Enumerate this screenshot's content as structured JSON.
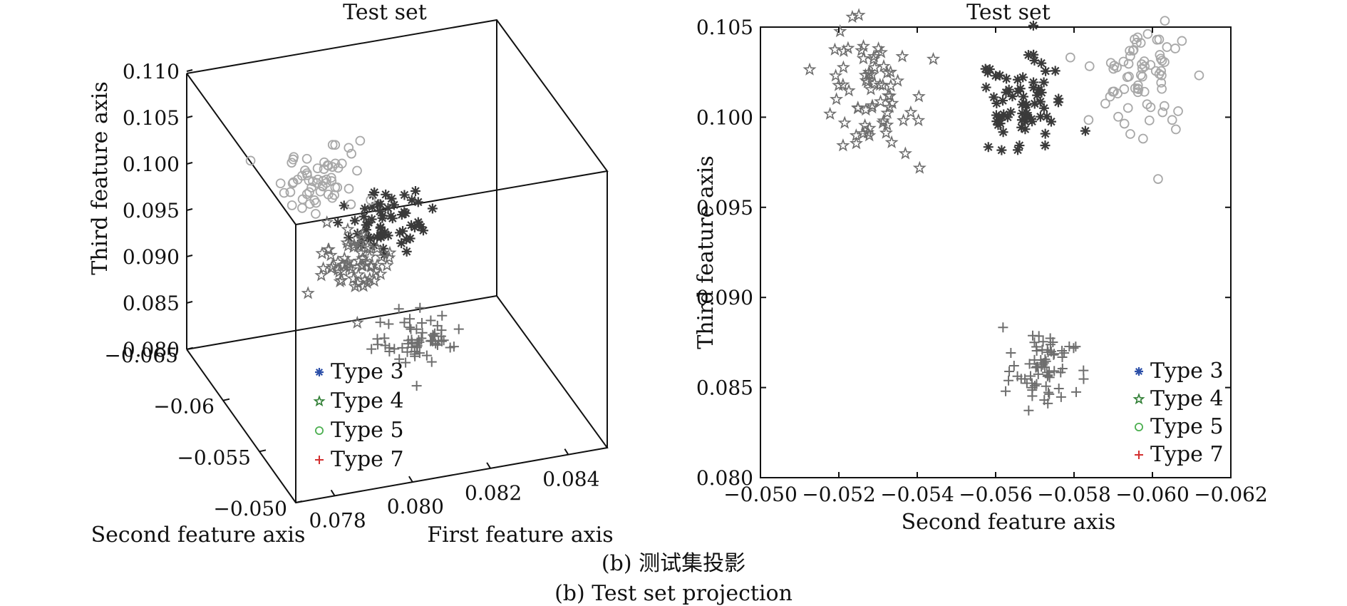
{
  "caption": {
    "line1": "(b) 测试集投影",
    "line2": "(b) Test set projection"
  },
  "legend": [
    {
      "label": "Type 3",
      "marker": "asterisk",
      "color": "#2c4fa8"
    },
    {
      "label": "Type 4",
      "marker": "star",
      "color": "#2e7d32"
    },
    {
      "label": "Type 5",
      "marker": "circle",
      "color": "#4caf50"
    },
    {
      "label": "Type 7",
      "marker": "plus",
      "color": "#d32f2f"
    }
  ],
  "colors": {
    "type3_points": "#3a3a3a",
    "type4_points": "#6e6e6e",
    "type5_points": "#a8a8a8",
    "type7_points": "#6e6e6e",
    "axes": "#111111"
  },
  "chart_data": [
    {
      "type": "scatter",
      "projection": "3d",
      "title": "Test set",
      "xlabel": "First feature axis",
      "ylabel": "Second feature axis",
      "zlabel": "Third feature axis",
      "xlim": [
        0.077,
        0.085
      ],
      "ylim": [
        -0.065,
        -0.05
      ],
      "zlim": [
        0.08,
        0.11
      ],
      "x_ticks": [
        "0.078",
        "0.080",
        "0.082",
        "0.084"
      ],
      "y_ticks": [
        "−0.065",
        "−0.06",
        "−0.055",
        "−0.050"
      ],
      "z_ticks": [
        "0.080",
        "0.085",
        "0.090",
        "0.095",
        "0.100",
        "0.105",
        "0.110"
      ],
      "grid": false,
      "legend_position": "lower-left",
      "series": [
        {
          "name": "Type 3",
          "marker": "asterisk",
          "center": [
            0.0805,
            -0.0565,
            0.1005
          ],
          "spread": [
            0.0006,
            0.0006,
            0.0015
          ],
          "count": 60
        },
        {
          "name": "Type 4",
          "marker": "star",
          "center": [
            0.079,
            -0.0527,
            0.1015
          ],
          "spread": [
            0.0005,
            0.0006,
            0.0018
          ],
          "count": 60
        },
        {
          "name": "Type 5",
          "marker": "circle",
          "center": [
            0.0795,
            -0.0596,
            0.1025
          ],
          "spread": [
            0.0005,
            0.0006,
            0.0015
          ],
          "count": 60
        },
        {
          "name": "Type 7",
          "marker": "plus",
          "center": [
            0.0815,
            -0.0573,
            0.086
          ],
          "spread": [
            0.0005,
            0.0006,
            0.0012
          ],
          "count": 60
        }
      ]
    },
    {
      "type": "scatter",
      "title": "Test set",
      "xlabel": "Second feature axis",
      "ylabel": "Third feature axis",
      "xlim": [
        -0.05,
        -0.062
      ],
      "ylim": [
        0.08,
        0.105
      ],
      "x_ticks": [
        "−0.050",
        "−0.052",
        "−0.054",
        "−0.056",
        "−0.058",
        "−0.060",
        "−0.062"
      ],
      "y_ticks": [
        "0.080",
        "0.085",
        "0.090",
        "0.095",
        "0.100",
        "0.105"
      ],
      "grid": false,
      "legend_position": "lower-right",
      "series": [
        {
          "name": "Type 3",
          "marker": "asterisk",
          "center": [
            -0.0567,
            0.1005
          ],
          "spread": [
            0.0006,
            0.0014
          ],
          "count": 70
        },
        {
          "name": "Type 4",
          "marker": "star",
          "center": [
            -0.0527,
            0.1015
          ],
          "spread": [
            0.0006,
            0.0017
          ],
          "count": 70
        },
        {
          "name": "Type 5",
          "marker": "circle",
          "center": [
            -0.0598,
            0.1022
          ],
          "spread": [
            0.0006,
            0.0014
          ],
          "count": 70
        },
        {
          "name": "Type 7",
          "marker": "plus",
          "center": [
            -0.0572,
            0.0859
          ],
          "spread": [
            0.0005,
            0.0012
          ],
          "count": 70
        }
      ]
    }
  ]
}
